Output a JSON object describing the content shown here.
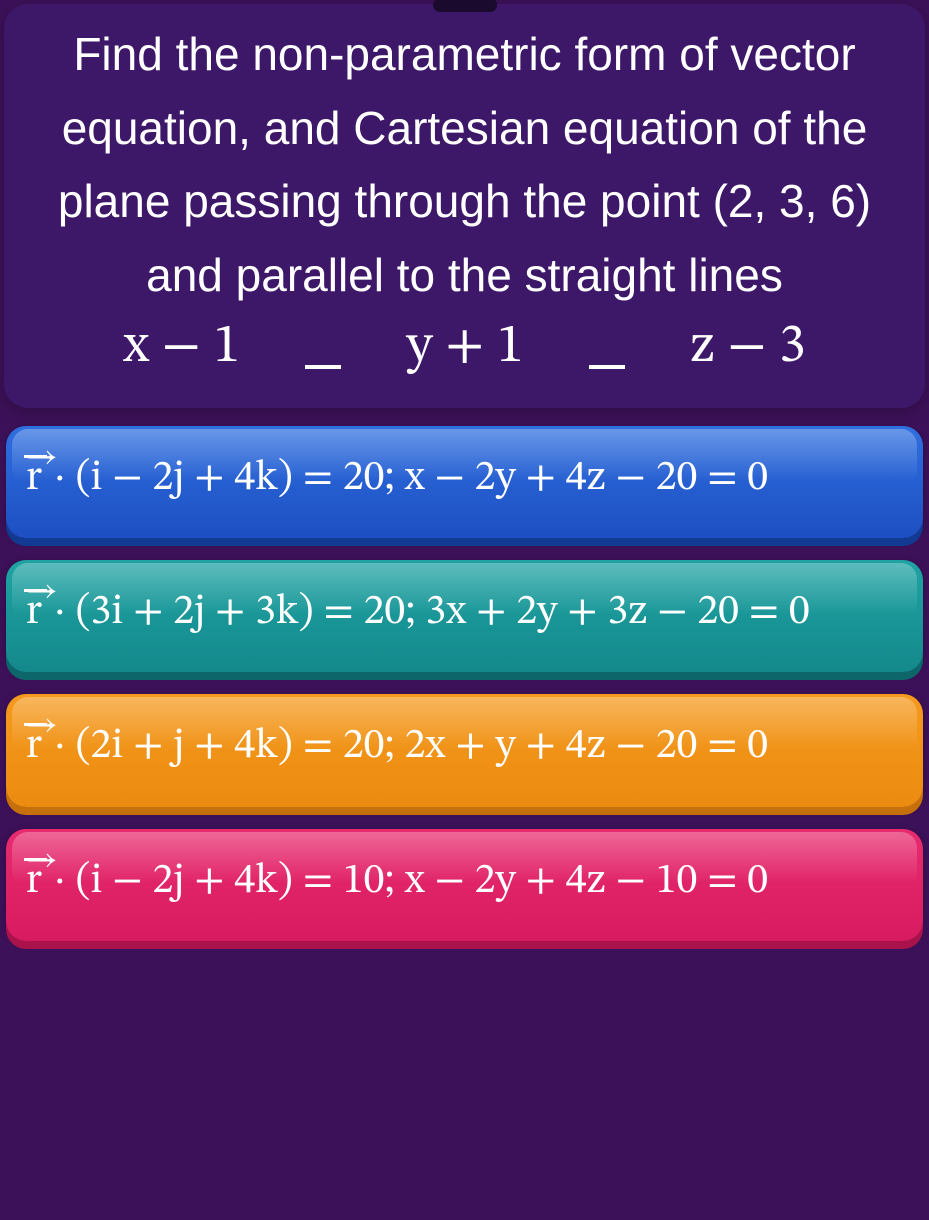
{
  "question": {
    "text": "Find the non-parametric form of vector equation, and Cartesian equation of the plane passing through the point (2, 3, 6) and parallel to the straight lines",
    "eq_frac1": "x − 1",
    "eq_frac2": "y + 1",
    "eq_frac3": "z − 3"
  },
  "answers": [
    {
      "color": "blue",
      "vector": " · (i − 2j + 4k) = 20;",
      "cartesian": " x − 2y + 4z − 20 = 0"
    },
    {
      "color": "teal",
      "vector": " · (3i + 2j + 3k) = 20;",
      "cartesian": "  3x + 2y + 3z − 20 = 0"
    },
    {
      "color": "orange",
      "vector": " · (2i + j + 4k) = 20;",
      "cartesian": " 2x + y + 4z − 20 = 0"
    },
    {
      "color": "pink",
      "vector": " · (i − 2j + 4k) = 10;",
      "cartesian": " x − 2y + 4z − 10 = 0"
    }
  ],
  "colors": {
    "background": "#3d1159",
    "card": "#3d1768",
    "text": "#ffffff",
    "blue": "#1d4fc2",
    "teal": "#14898c",
    "orange": "#ec8b10",
    "pink": "#d81b60"
  }
}
